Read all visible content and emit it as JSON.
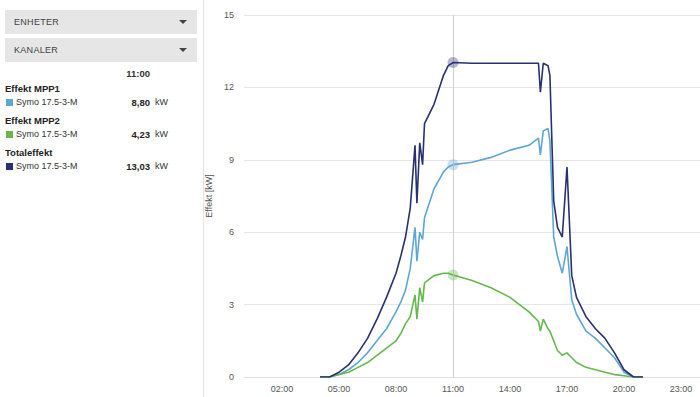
{
  "panel": {
    "dropdowns": [
      "ENHETER",
      "KANALER"
    ],
    "time": {
      "value": 11,
      "label": "11:00"
    },
    "rows": [
      {
        "device": "Symo 17.5-3-M",
        "value": 8.8,
        "label": "8,80",
        "unit": "kW"
      },
      {
        "device": "Symo 17.5-3-M",
        "value": 4.23,
        "label": "4,23",
        "unit": "kW"
      },
      {
        "device": "Symo 17.5-3-M",
        "value": 13.03,
        "label": "13,03",
        "unit": "kW"
      }
    ]
  },
  "chart_data": {
    "type": "line",
    "y_label": "Effekt [kW]",
    "x": [
      4,
      4.5,
      5,
      5.5,
      6,
      6.5,
      7,
      7.5,
      8,
      8.25,
      8.5,
      8.75,
      9,
      9.1,
      9.25,
      9.4,
      9.5,
      10,
      10.5,
      10.75,
      11,
      12,
      13,
      14,
      15,
      15.5,
      15.6,
      15.75,
      16,
      16.1,
      16.3,
      16.5,
      16.75,
      17,
      17.25,
      17.5,
      18,
      18.5,
      19,
      19.5,
      20,
      20.5,
      21
    ],
    "series": [
      {
        "name": "Effekt MPP1",
        "color": "#5fa6d3",
        "values": [
          0,
          0,
          0.1,
          0.3,
          0.6,
          1.0,
          1.5,
          2.0,
          2.7,
          3.1,
          3.6,
          4.5,
          6.2,
          4.8,
          6.0,
          5.7,
          6.6,
          7.8,
          8.5,
          8.7,
          8.8,
          8.9,
          9.1,
          9.4,
          9.6,
          9.9,
          9.2,
          10.2,
          10.3,
          9.8,
          5.8,
          5.0,
          4.3,
          5.4,
          3.2,
          2.6,
          1.9,
          1.6,
          1.2,
          0.8,
          0.2,
          0,
          0
        ]
      },
      {
        "name": "Effekt MPP2",
        "color": "#62b94c",
        "values": [
          0,
          0,
          0.1,
          0.2,
          0.4,
          0.6,
          0.9,
          1.2,
          1.5,
          1.8,
          2.2,
          2.5,
          3.4,
          2.4,
          3.7,
          3.1,
          3.9,
          4.2,
          4.3,
          4.3,
          4.23,
          4.0,
          3.7,
          3.3,
          2.7,
          2.3,
          1.9,
          2.4,
          2.0,
          1.9,
          1.5,
          1.1,
          0.9,
          1.0,
          0.8,
          0.6,
          0.4,
          0.3,
          0.2,
          0.1,
          0.05,
          0,
          0
        ]
      },
      {
        "name": "Totaleffekt",
        "color": "#283171",
        "values": [
          0,
          0,
          0.2,
          0.5,
          1.0,
          1.6,
          2.4,
          3.3,
          4.3,
          5.0,
          5.8,
          7.0,
          9.6,
          7.2,
          9.7,
          8.8,
          10.5,
          11.3,
          12.5,
          12.9,
          13.03,
          13.0,
          13.0,
          13.0,
          13.0,
          13.0,
          11.8,
          13.0,
          12.9,
          12.5,
          7.3,
          6.2,
          5.8,
          8.7,
          4.2,
          3.3,
          2.5,
          2.0,
          1.6,
          1.0,
          0.3,
          0,
          0
        ]
      }
    ],
    "xlim": [
      0,
      24
    ],
    "xticks": [
      {
        "value": 2,
        "label": "02:00"
      },
      {
        "value": 5,
        "label": "05:00"
      },
      {
        "value": 8,
        "label": "08:00"
      },
      {
        "value": 11,
        "label": "11:00"
      },
      {
        "value": 14,
        "label": "14:00"
      },
      {
        "value": 17,
        "label": "17:00"
      },
      {
        "value": 20,
        "label": "20:00"
      },
      {
        "value": 23,
        "label": "23:00"
      }
    ],
    "ylim": [
      0,
      15
    ],
    "yticks": [
      0,
      3,
      6,
      9,
      12,
      15
    ],
    "grid": true
  }
}
